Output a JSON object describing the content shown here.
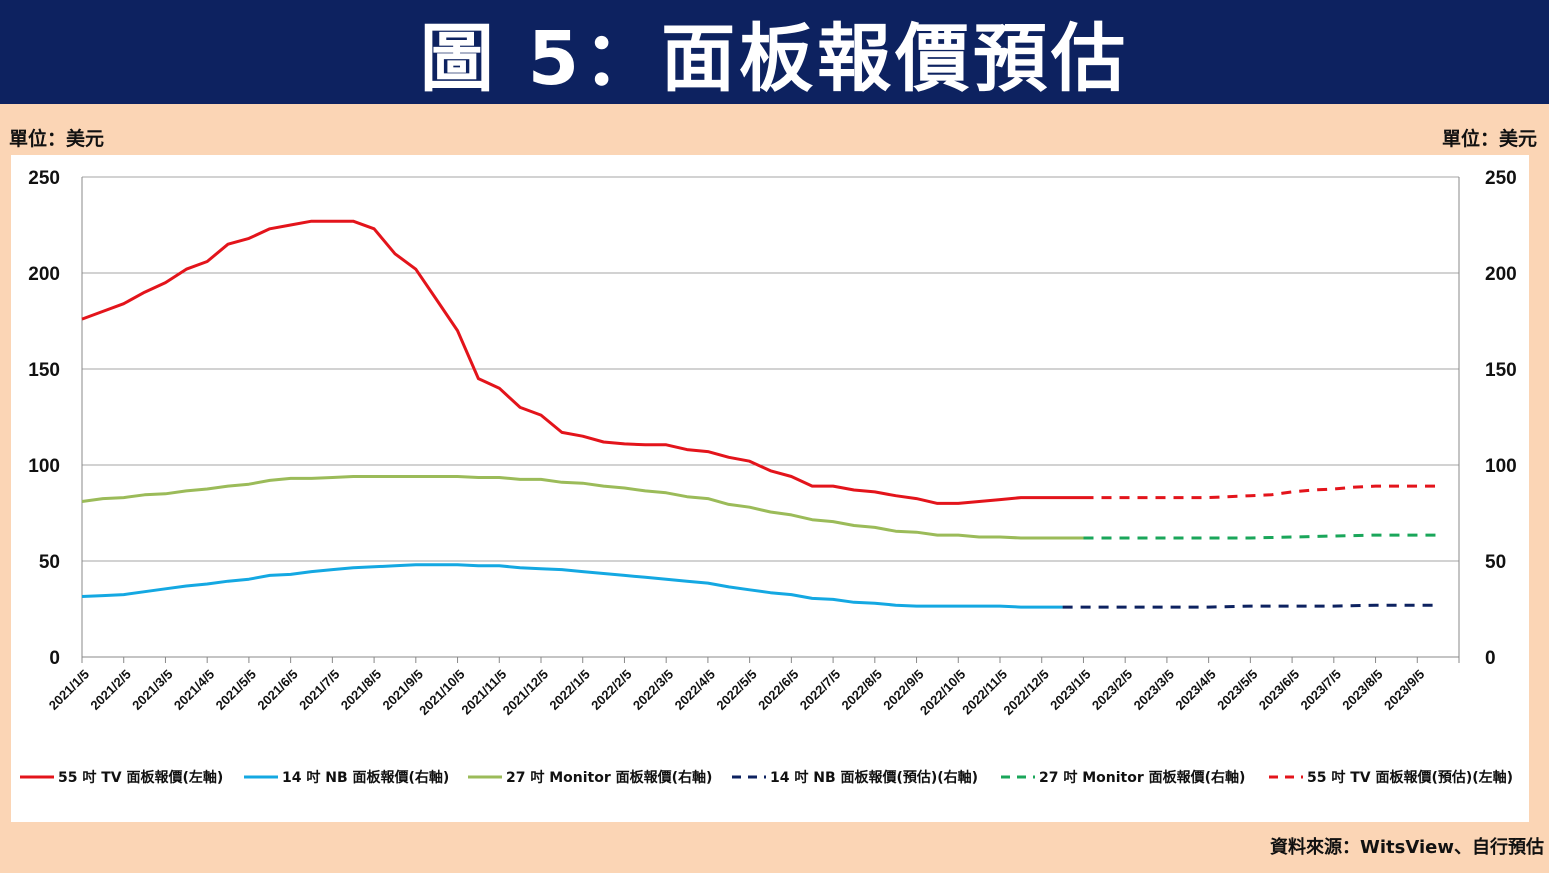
{
  "title": "圖 5：面板報價預估",
  "unit_left": "單位：美元",
  "unit_right": "單位：美元",
  "source": "資料來源：WitsView、自行預估",
  "chart_data": {
    "type": "line",
    "ylim": [
      0,
      250
    ],
    "y_ticks": [
      0,
      50,
      100,
      150,
      200,
      250
    ],
    "y2lim": [
      0,
      250
    ],
    "grid": true,
    "legend_position": "bottom",
    "x_labels": [
      "2021/1/5",
      "2021/2/5",
      "2021/3/5",
      "2021/4/5",
      "2021/5/5",
      "2021/6/5",
      "2021/7/5",
      "2021/8/5",
      "2021/9/5",
      "2021/10/5",
      "2021/11/5",
      "2021/12/5",
      "2022/1/5",
      "2022/2/5",
      "2022/3/5",
      "2022/4/5",
      "2022/5/5",
      "2022/6/5",
      "2022/7/5",
      "2022/8/5",
      "2022/9/5",
      "2022/10/5",
      "2022/11/5",
      "2022/12/5",
      "2023/1/5",
      "2023/2/5",
      "2023/3/5",
      "2023/4/5",
      "2023/5/5",
      "2023/6/5",
      "2023/7/5",
      "2023/8/5",
      "2023/9/5"
    ],
    "series": [
      {
        "name": "55 吋 TV 面板報價(左軸)",
        "color": "#e3141b",
        "dash": false,
        "axis": "left",
        "x": [
          0,
          0.5,
          1,
          1.5,
          2,
          2.5,
          3,
          3.5,
          4,
          4.5,
          5,
          5.5,
          6,
          6.5,
          7,
          7.5,
          8,
          8.5,
          9,
          9.5,
          10,
          10.5,
          11,
          11.5,
          12,
          12.5,
          13,
          13.5,
          14,
          14.5,
          15,
          15.5,
          16,
          16.5,
          17,
          17.5,
          18,
          18.5,
          19,
          19.5,
          20,
          20.5,
          21,
          21.5,
          22,
          22.5,
          23,
          23.5,
          24
        ],
        "values": [
          176,
          180,
          184,
          190,
          195,
          202,
          206,
          215,
          218,
          223,
          225,
          227,
          227,
          227,
          223,
          210,
          202,
          186,
          170,
          145,
          140,
          130,
          126,
          117,
          115,
          112,
          111,
          110.5,
          110.5,
          108,
          107,
          104,
          102,
          97,
          94,
          89,
          89,
          87,
          86,
          84,
          82.5,
          80,
          80,
          81,
          82,
          83,
          83,
          83,
          83
        ]
      },
      {
        "name": "14 吋 NB 面板報價(右軸)",
        "color": "#14a8e2",
        "dash": false,
        "axis": "right",
        "x": [
          0,
          0.5,
          1,
          1.5,
          2,
          2.5,
          3,
          3.5,
          4,
          4.5,
          5,
          5.5,
          6,
          6.5,
          7,
          7.5,
          8,
          8.5,
          9,
          9.5,
          10,
          10.5,
          11,
          11.5,
          12,
          12.5,
          13,
          13.5,
          14,
          14.5,
          15,
          15.5,
          16,
          16.5,
          17,
          17.5,
          18,
          18.5,
          19,
          19.5,
          20,
          20.5,
          21,
          21.5,
          22,
          22.5,
          23,
          23.5
        ],
        "values": [
          31.5,
          32,
          32.5,
          34,
          35.5,
          37,
          38,
          39.5,
          40.5,
          42.5,
          43,
          44.5,
          45.5,
          46.5,
          47,
          47.5,
          48,
          48,
          48,
          47.5,
          47.5,
          46.5,
          46,
          45.5,
          44.5,
          43.5,
          42.5,
          41.5,
          40.5,
          39.5,
          38.5,
          36.5,
          35,
          33.5,
          32.5,
          30.5,
          30,
          28.5,
          28,
          27,
          26.5,
          26.5,
          26.5,
          26.5,
          26.5,
          26,
          26,
          26
        ]
      },
      {
        "name": "27 吋 Monitor 面板報價(右軸)",
        "color": "#9bbb59",
        "dash": false,
        "axis": "right",
        "x": [
          0,
          0.5,
          1,
          1.5,
          2,
          2.5,
          3,
          3.5,
          4,
          4.5,
          5,
          5.5,
          6,
          6.5,
          7,
          7.5,
          8,
          8.5,
          9,
          9.5,
          10,
          10.5,
          11,
          11.5,
          12,
          12.5,
          13,
          13.5,
          14,
          14.5,
          15,
          15.5,
          16,
          16.5,
          17,
          17.5,
          18,
          18.5,
          19,
          19.5,
          20,
          20.5,
          21,
          21.5,
          22,
          22.5,
          23,
          23.5,
          24
        ],
        "values": [
          81,
          82.5,
          83,
          84.5,
          85,
          86.5,
          87.5,
          89,
          90,
          92,
          93,
          93,
          93.5,
          94,
          94,
          94,
          94,
          94,
          94,
          93.5,
          93.5,
          92.5,
          92.5,
          91,
          90.5,
          89,
          88,
          86.5,
          85.5,
          83.5,
          82.5,
          79.5,
          78,
          75.5,
          74,
          71.5,
          70.5,
          68.5,
          67.5,
          65.5,
          65,
          63.5,
          63.5,
          62.5,
          62.5,
          62,
          62,
          62,
          62
        ]
      },
      {
        "name": "14 吋 NB 面板報價(預估)(右軸)",
        "color": "#0d2260",
        "dash": true,
        "axis": "right",
        "x": [
          23.5,
          24,
          25,
          26,
          27,
          28,
          29,
          30,
          31,
          32,
          32.5
        ],
        "values": [
          26,
          26,
          26,
          26,
          26,
          26.5,
          26.5,
          26.5,
          27,
          27,
          27
        ]
      },
      {
        "name": "27 吋 Monitor 面板報價(右軸)",
        "color": "#1aa65a",
        "dash": true,
        "axis": "right",
        "x": [
          24,
          25,
          26,
          27,
          28,
          29,
          30,
          31,
          32,
          32.5
        ],
        "values": [
          62,
          62,
          62,
          62,
          62,
          62.5,
          63,
          63.5,
          63.5,
          63.5
        ]
      },
      {
        "name": "55 吋 TV 面板報價(預估)(左軸)",
        "color": "#e3141b",
        "dash": true,
        "axis": "left",
        "x": [
          24,
          25,
          26,
          27,
          28,
          28.5,
          29,
          29.5,
          30,
          30.5,
          31,
          31.5,
          32,
          32.5
        ],
        "values": [
          83,
          83,
          83,
          83,
          84,
          84.5,
          86,
          87,
          87.5,
          88.5,
          89,
          89,
          89,
          89
        ]
      }
    ]
  }
}
